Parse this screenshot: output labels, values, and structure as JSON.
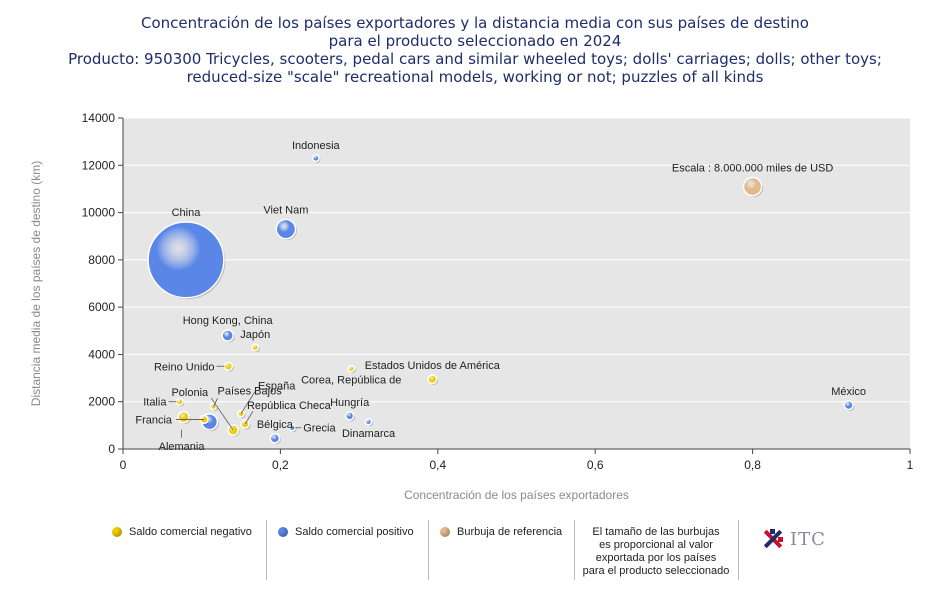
{
  "title": {
    "line1": "Concentración de los países exportadores y la distancia media con sus países de destino",
    "line2": "para el producto seleccionado en 2024",
    "line3": "Producto: 950300 Tricycles, scooters, pedal cars and similar wheeled toys; dolls' carriages; dolls; other toys;",
    "line4": "reduced-size \"scale\" recreational models, working or not; puzzles of all kinds"
  },
  "colors": {
    "negative": "#f2cc00",
    "positive": "#5a86e8",
    "reference": "#e3b98a",
    "plot_bg": "#e6e6e6"
  },
  "legend": {
    "negative_label": "Saldo comercial negativo",
    "positive_label": "Saldo comercial positivo",
    "reference_label": "Burbuja de referencia",
    "note_line1": "El tamaño de las burbujas",
    "note_line2": "es proporcional al valor",
    "note_line3": "exportada por los países",
    "note_line4": "para el producto seleccionado",
    "logo_text": "ITC"
  },
  "chart_data": {
    "type": "scatter",
    "title": "Concentración de los países exportadores y la distancia media con sus países de destino para el producto seleccionado en 2024",
    "xlabel": "Concentración de los países exportadores",
    "ylabel": "Distancia media de los países de destino (km)",
    "xlim": [
      0,
      1
    ],
    "ylim": [
      0,
      14000
    ],
    "xticks": [
      0,
      0.2,
      0.4,
      0.6,
      0.8,
      1
    ],
    "xtick_labels": [
      "0",
      "0,2",
      "0,4",
      "0,6",
      "0,8",
      "1"
    ],
    "yticks": [
      0,
      2000,
      4000,
      6000,
      8000,
      10000,
      12000,
      14000
    ],
    "ytick_labels": [
      "0",
      "2000",
      "4000",
      "6000",
      "8000",
      "10000",
      "12000",
      "14000"
    ],
    "grid": "horizontal",
    "reference_label": "Escala : 8.000.000 miles de USD",
    "points": [
      {
        "name": "China",
        "x": 0.08,
        "y": 8000,
        "size": 140,
        "balance": "positive",
        "label_pos": "above"
      },
      {
        "name": "Viet Nam",
        "x": 0.207,
        "y": 9300,
        "size": 9,
        "balance": "positive",
        "label_pos": "above"
      },
      {
        "name": "Indonesia",
        "x": 0.245,
        "y": 12300,
        "size": 1,
        "balance": "positive",
        "label_pos": "above"
      },
      {
        "name": "Hong Kong, China",
        "x": 0.133,
        "y": 4800,
        "size": 3,
        "balance": "positive",
        "label_pos": "above"
      },
      {
        "name": "Japón",
        "x": 0.168,
        "y": 4300,
        "size": 1,
        "balance": "negative",
        "label_pos": "above"
      },
      {
        "name": "Reino Unido",
        "x": 0.134,
        "y": 3500,
        "size": 1.5,
        "balance": "negative",
        "label_pos": "left"
      },
      {
        "name": "España",
        "x": 0.15,
        "y": 1500,
        "size": 1,
        "balance": "negative",
        "label_pos": "leader"
      },
      {
        "name": "Países Bajos",
        "x": 0.115,
        "y": 1800,
        "size": 0.8,
        "balance": "negative",
        "label_pos": "leader"
      },
      {
        "name": "Polonia",
        "x": 0.14,
        "y": 800,
        "size": 2.5,
        "balance": "negative",
        "label_pos": "leader"
      },
      {
        "name": "Italia",
        "x": 0.072,
        "y": 2000,
        "size": 1,
        "balance": "negative",
        "label_pos": "left"
      },
      {
        "name": "Francia",
        "x": 0.103,
        "y": 1250,
        "size": 1.5,
        "balance": "negative",
        "label_pos": "leader"
      },
      {
        "name": "Alemania",
        "x": 0.11,
        "y": 1150,
        "size": 6,
        "balance": "positive",
        "label_pos": "leader"
      },
      {
        "name": "Alemania (saldo negativo)",
        "x": 0.077,
        "y": 1350,
        "size": 3,
        "balance": "negative",
        "label_pos": "none"
      },
      {
        "name": "República Checa",
        "x": 0.155,
        "y": 1050,
        "size": 1.5,
        "balance": "negative",
        "label_pos": "leader"
      },
      {
        "name": "Bélgica",
        "x": 0.193,
        "y": 450,
        "size": 2,
        "balance": "positive",
        "label_pos": "above"
      },
      {
        "name": "Grecia",
        "x": 0.215,
        "y": 900,
        "size": 0.3,
        "balance": "positive",
        "label_pos": "right"
      },
      {
        "name": "Hungría",
        "x": 0.288,
        "y": 1400,
        "size": 1.5,
        "balance": "positive",
        "label_pos": "above"
      },
      {
        "name": "Dinamarca",
        "x": 0.312,
        "y": 1150,
        "size": 0.8,
        "balance": "positive",
        "label_pos": "below"
      },
      {
        "name": "Corea, República de",
        "x": 0.29,
        "y": 3400,
        "size": 0.5,
        "balance": "negative",
        "label_pos": "below"
      },
      {
        "name": "Estados Unidos de América",
        "x": 0.393,
        "y": 2950,
        "size": 1.8,
        "balance": "negative",
        "label_pos": "above"
      },
      {
        "name": "México",
        "x": 0.922,
        "y": 1850,
        "size": 1.8,
        "balance": "positive",
        "label_pos": "above"
      },
      {
        "name": "Escala : 8.000.000 miles de USD",
        "x": 0.8,
        "y": 11100,
        "size": 8,
        "balance": "reference",
        "label_pos": "above"
      }
    ]
  }
}
